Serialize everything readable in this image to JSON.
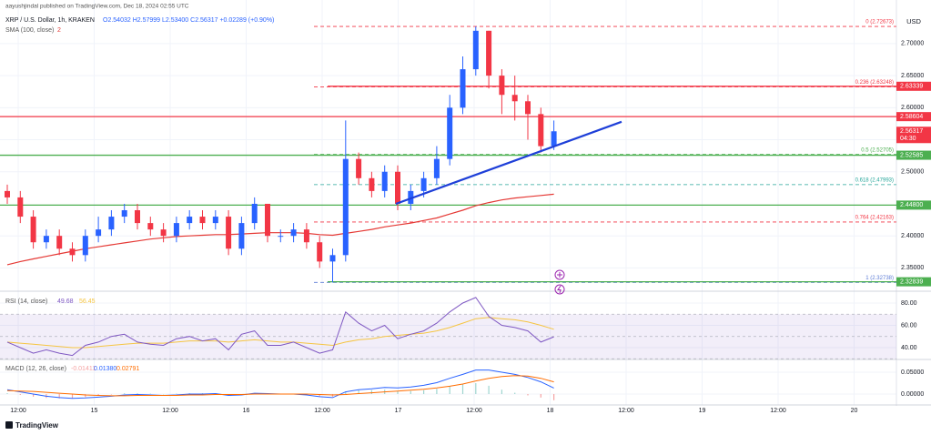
{
  "header": {
    "published": "aayushjindal published on TradingView.com, Dec 18, 2024 02:55 UTC",
    "symbol": "XRP / U.S. Dollar, 1h, KRAKEN",
    "ohlc": "O2.54032 H2.57999 L2.53400 C2.56317 +0.02289 (+0.90%)",
    "sma": "SMA (100, close)",
    "sma_extra": "2",
    "currency": "USD"
  },
  "chart_data": [
    {
      "type": "candlestick",
      "up_color": "#2962ff",
      "down_color": "#f23645",
      "open": [
        2.47,
        2.46,
        2.43,
        2.39,
        2.4,
        2.38,
        2.37,
        2.4,
        2.41,
        2.43,
        2.44,
        2.42,
        2.41,
        2.4,
        2.42,
        2.43,
        2.42,
        2.43,
        2.38,
        2.42,
        2.45,
        2.4,
        2.4,
        2.41,
        2.39,
        2.36,
        2.37,
        2.52,
        2.49,
        2.47,
        2.5,
        2.45,
        2.47,
        2.49,
        2.52,
        2.6,
        2.66,
        2.72,
        2.65,
        2.62,
        2.61,
        2.59,
        2.54032
      ],
      "high": [
        2.48,
        2.47,
        2.44,
        2.41,
        2.41,
        2.39,
        2.41,
        2.43,
        2.44,
        2.45,
        2.45,
        2.43,
        2.42,
        2.43,
        2.44,
        2.44,
        2.44,
        2.44,
        2.43,
        2.46,
        2.45,
        2.41,
        2.42,
        2.42,
        2.4,
        2.38,
        2.58,
        2.53,
        2.5,
        2.51,
        2.51,
        2.48,
        2.5,
        2.54,
        2.62,
        2.68,
        2.7267,
        2.72,
        2.66,
        2.65,
        2.62,
        2.6,
        2.57999
      ],
      "low": [
        2.45,
        2.42,
        2.38,
        2.38,
        2.37,
        2.36,
        2.36,
        2.39,
        2.4,
        2.42,
        2.41,
        2.4,
        2.39,
        2.39,
        2.41,
        2.41,
        2.41,
        2.37,
        2.37,
        2.41,
        2.39,
        2.39,
        2.39,
        2.38,
        2.35,
        2.3274,
        2.36,
        2.48,
        2.46,
        2.46,
        2.44,
        2.44,
        2.46,
        2.48,
        2.51,
        2.59,
        2.65,
        2.63,
        2.59,
        2.58,
        2.55,
        2.53,
        2.534
      ],
      "close": [
        2.46,
        2.43,
        2.39,
        2.4,
        2.38,
        2.37,
        2.4,
        2.41,
        2.43,
        2.44,
        2.42,
        2.41,
        2.4,
        2.42,
        2.43,
        2.42,
        2.43,
        2.38,
        2.42,
        2.45,
        2.4,
        2.4,
        2.41,
        2.39,
        2.36,
        2.37,
        2.52,
        2.49,
        2.47,
        2.5,
        2.45,
        2.47,
        2.49,
        2.52,
        2.6,
        2.66,
        2.72,
        2.65,
        2.62,
        2.61,
        2.59,
        2.54,
        2.56317
      ],
      "sma": {
        "color": "#e53935",
        "values": [
          2.355,
          2.36,
          2.364,
          2.368,
          2.372,
          2.376,
          2.38,
          2.383,
          2.386,
          2.389,
          2.392,
          2.395,
          2.397,
          2.399,
          2.4,
          2.401,
          2.402,
          2.402,
          2.403,
          2.404,
          2.405,
          2.405,
          2.405,
          2.404,
          2.402,
          2.401,
          2.404,
          2.407,
          2.41,
          2.414,
          2.417,
          2.42,
          2.424,
          2.428,
          2.434,
          2.44,
          2.447,
          2.452,
          2.456,
          2.459,
          2.461,
          2.463,
          2.465
        ]
      },
      "ylim": [
        2.3165,
        2.768
      ],
      "yticks": [
        {
          "value": 2.7,
          "label": "2.70000"
        },
        {
          "value": 2.65,
          "label": "2.65000"
        },
        {
          "value": 2.6,
          "label": "2.60000"
        },
        {
          "value": 2.55,
          "label": "2.55000"
        },
        {
          "value": 2.5,
          "label": "2.50000"
        },
        {
          "value": 2.4,
          "label": "2.40000"
        },
        {
          "value": 2.35,
          "label": "2.35000"
        }
      ],
      "grid": true,
      "price_tags": [
        {
          "value": 2.63339,
          "label": "2.63339",
          "color": "#f23645",
          "line": "partial"
        },
        {
          "value": 2.58604,
          "label": "2.58604",
          "color": "#f23645",
          "line": "full"
        },
        {
          "value": 2.56317,
          "label": "2.56317",
          "color": "#f23645",
          "line": "none",
          "countdown": "04:30"
        },
        {
          "value": 2.52585,
          "label": "2.52585",
          "color": "#4caf50",
          "line": "full"
        },
        {
          "value": 2.448,
          "label": "2.44800",
          "color": "#4caf50",
          "line": "full"
        },
        {
          "value": 2.32839,
          "label": "2.32839",
          "color": "#4caf50",
          "line": "partial"
        }
      ],
      "fib_levels": [
        {
          "value": 2.72673,
          "label": "0 (2.72673)",
          "color": "#f23645"
        },
        {
          "value": 2.63248,
          "label": "0.236 (2.63248)",
          "color": "#f23645"
        },
        {
          "value": 2.52705,
          "label": "0.5 (2.52705)",
          "color": "#4caf50"
        },
        {
          "value": 2.47993,
          "label": "0.618 (2.47993)",
          "color": "#26a69a"
        },
        {
          "value": 2.42163,
          "label": "0.764 (2.42163)",
          "color": "#f23645"
        },
        {
          "value": 2.32738,
          "label": "1 (2.32738)",
          "color": "#5b7bd5"
        }
      ],
      "trendline": {
        "from": 2.45,
        "to": 2.578,
        "color": "#1e3fd8"
      }
    },
    {
      "type": "line",
      "title": "RSI (14, close)",
      "legend_texts": [
        "49.68",
        "56.45"
      ],
      "series": [
        {
          "color": "#7e57c2",
          "values": [
            45,
            40,
            35,
            38,
            35,
            33,
            42,
            45,
            50,
            52,
            45,
            43,
            42,
            48,
            50,
            46,
            48,
            38,
            52,
            55,
            42,
            42,
            45,
            40,
            35,
            38,
            72,
            62,
            55,
            60,
            48,
            52,
            55,
            62,
            72,
            80,
            85,
            68,
            60,
            58,
            55,
            45,
            49.68
          ]
        },
        {
          "color": "#f5c542",
          "values": [
            45,
            44,
            43,
            42,
            41,
            40,
            40,
            41,
            42,
            43,
            44,
            44,
            44,
            45,
            46,
            46,
            46,
            45,
            46,
            47,
            46,
            45,
            45,
            44,
            43,
            42,
            45,
            47,
            48,
            50,
            51,
            52,
            53,
            55,
            58,
            62,
            66,
            67,
            66,
            65,
            63,
            60,
            56.45
          ]
        }
      ],
      "band": [
        30,
        70
      ],
      "dashed_levels": [
        70,
        50,
        30
      ],
      "ylim": [
        31,
        89
      ],
      "yticks": [
        {
          "value": 80,
          "label": "80.00"
        },
        {
          "value": 60,
          "label": "60.00"
        },
        {
          "value": 40,
          "label": "40.00"
        }
      ]
    },
    {
      "type": "macd",
      "title": "MACD (12, 26, close)",
      "legend_texts": [
        "-0.01411",
        "0.01380",
        "0.02791"
      ],
      "legend_colors": [
        "#f5a3a3",
        "#2962ff",
        "#ff6d00"
      ],
      "histogram": [
        0.002,
        -0.002,
        -0.006,
        -0.009,
        -0.01,
        -0.01,
        -0.007,
        -0.004,
        -0.001,
        0.002,
        0.002,
        0.001,
        0,
        0.001,
        0.002,
        0.002,
        0.002,
        -0.002,
        -0.001,
        0.002,
        0.001,
        0,
        0,
        -0.002,
        -0.005,
        -0.006,
        0.006,
        0.009,
        0.009,
        0.01,
        0.007,
        0.007,
        0.009,
        0.012,
        0.018,
        0.022,
        0.025,
        0.019,
        0.01,
        0.003,
        -0.003,
        -0.008,
        -0.01411
      ],
      "series": [
        {
          "color": "#2962ff",
          "values": [
            0.01,
            0.005,
            0,
            -0.005,
            -0.008,
            -0.01,
            -0.009,
            -0.007,
            -0.005,
            -0.002,
            -0.001,
            -0.002,
            -0.003,
            -0.002,
            0,
            0,
            0.001,
            -0.003,
            -0.002,
            0.002,
            0.001,
            0,
            0,
            -0.002,
            -0.006,
            -0.008,
            0.005,
            0.01,
            0.012,
            0.015,
            0.014,
            0.016,
            0.02,
            0.026,
            0.036,
            0.045,
            0.055,
            0.055,
            0.05,
            0.045,
            0.038,
            0.028,
            0.0138
          ]
        },
        {
          "color": "#ff6d00",
          "values": [
            0.008,
            0.007,
            0.006,
            0.004,
            0.002,
            0,
            -0.002,
            -0.003,
            -0.004,
            -0.004,
            -0.003,
            -0.003,
            -0.003,
            -0.003,
            -0.002,
            -0.002,
            -0.001,
            -0.001,
            -0.001,
            0,
            0,
            0,
            0,
            0,
            -0.001,
            -0.002,
            -0.001,
            0.001,
            0.003,
            0.005,
            0.007,
            0.009,
            0.011,
            0.014,
            0.018,
            0.023,
            0.03,
            0.036,
            0.04,
            0.042,
            0.041,
            0.036,
            0.02791
          ]
        }
      ],
      "ylim": [
        -0.0208,
        0.075
      ],
      "yticks": [
        {
          "value": 0.05,
          "label": "0.05000"
        },
        {
          "value": 0,
          "label": "0.00000"
        }
      ]
    }
  ],
  "time_axis": [
    "12:00",
    "15",
    "12:00",
    "16",
    "12:00",
    "17",
    "12:00",
    "18",
    "12:00",
    "19",
    "12:00",
    "20"
  ],
  "footer": {
    "brand": "TradingView"
  }
}
